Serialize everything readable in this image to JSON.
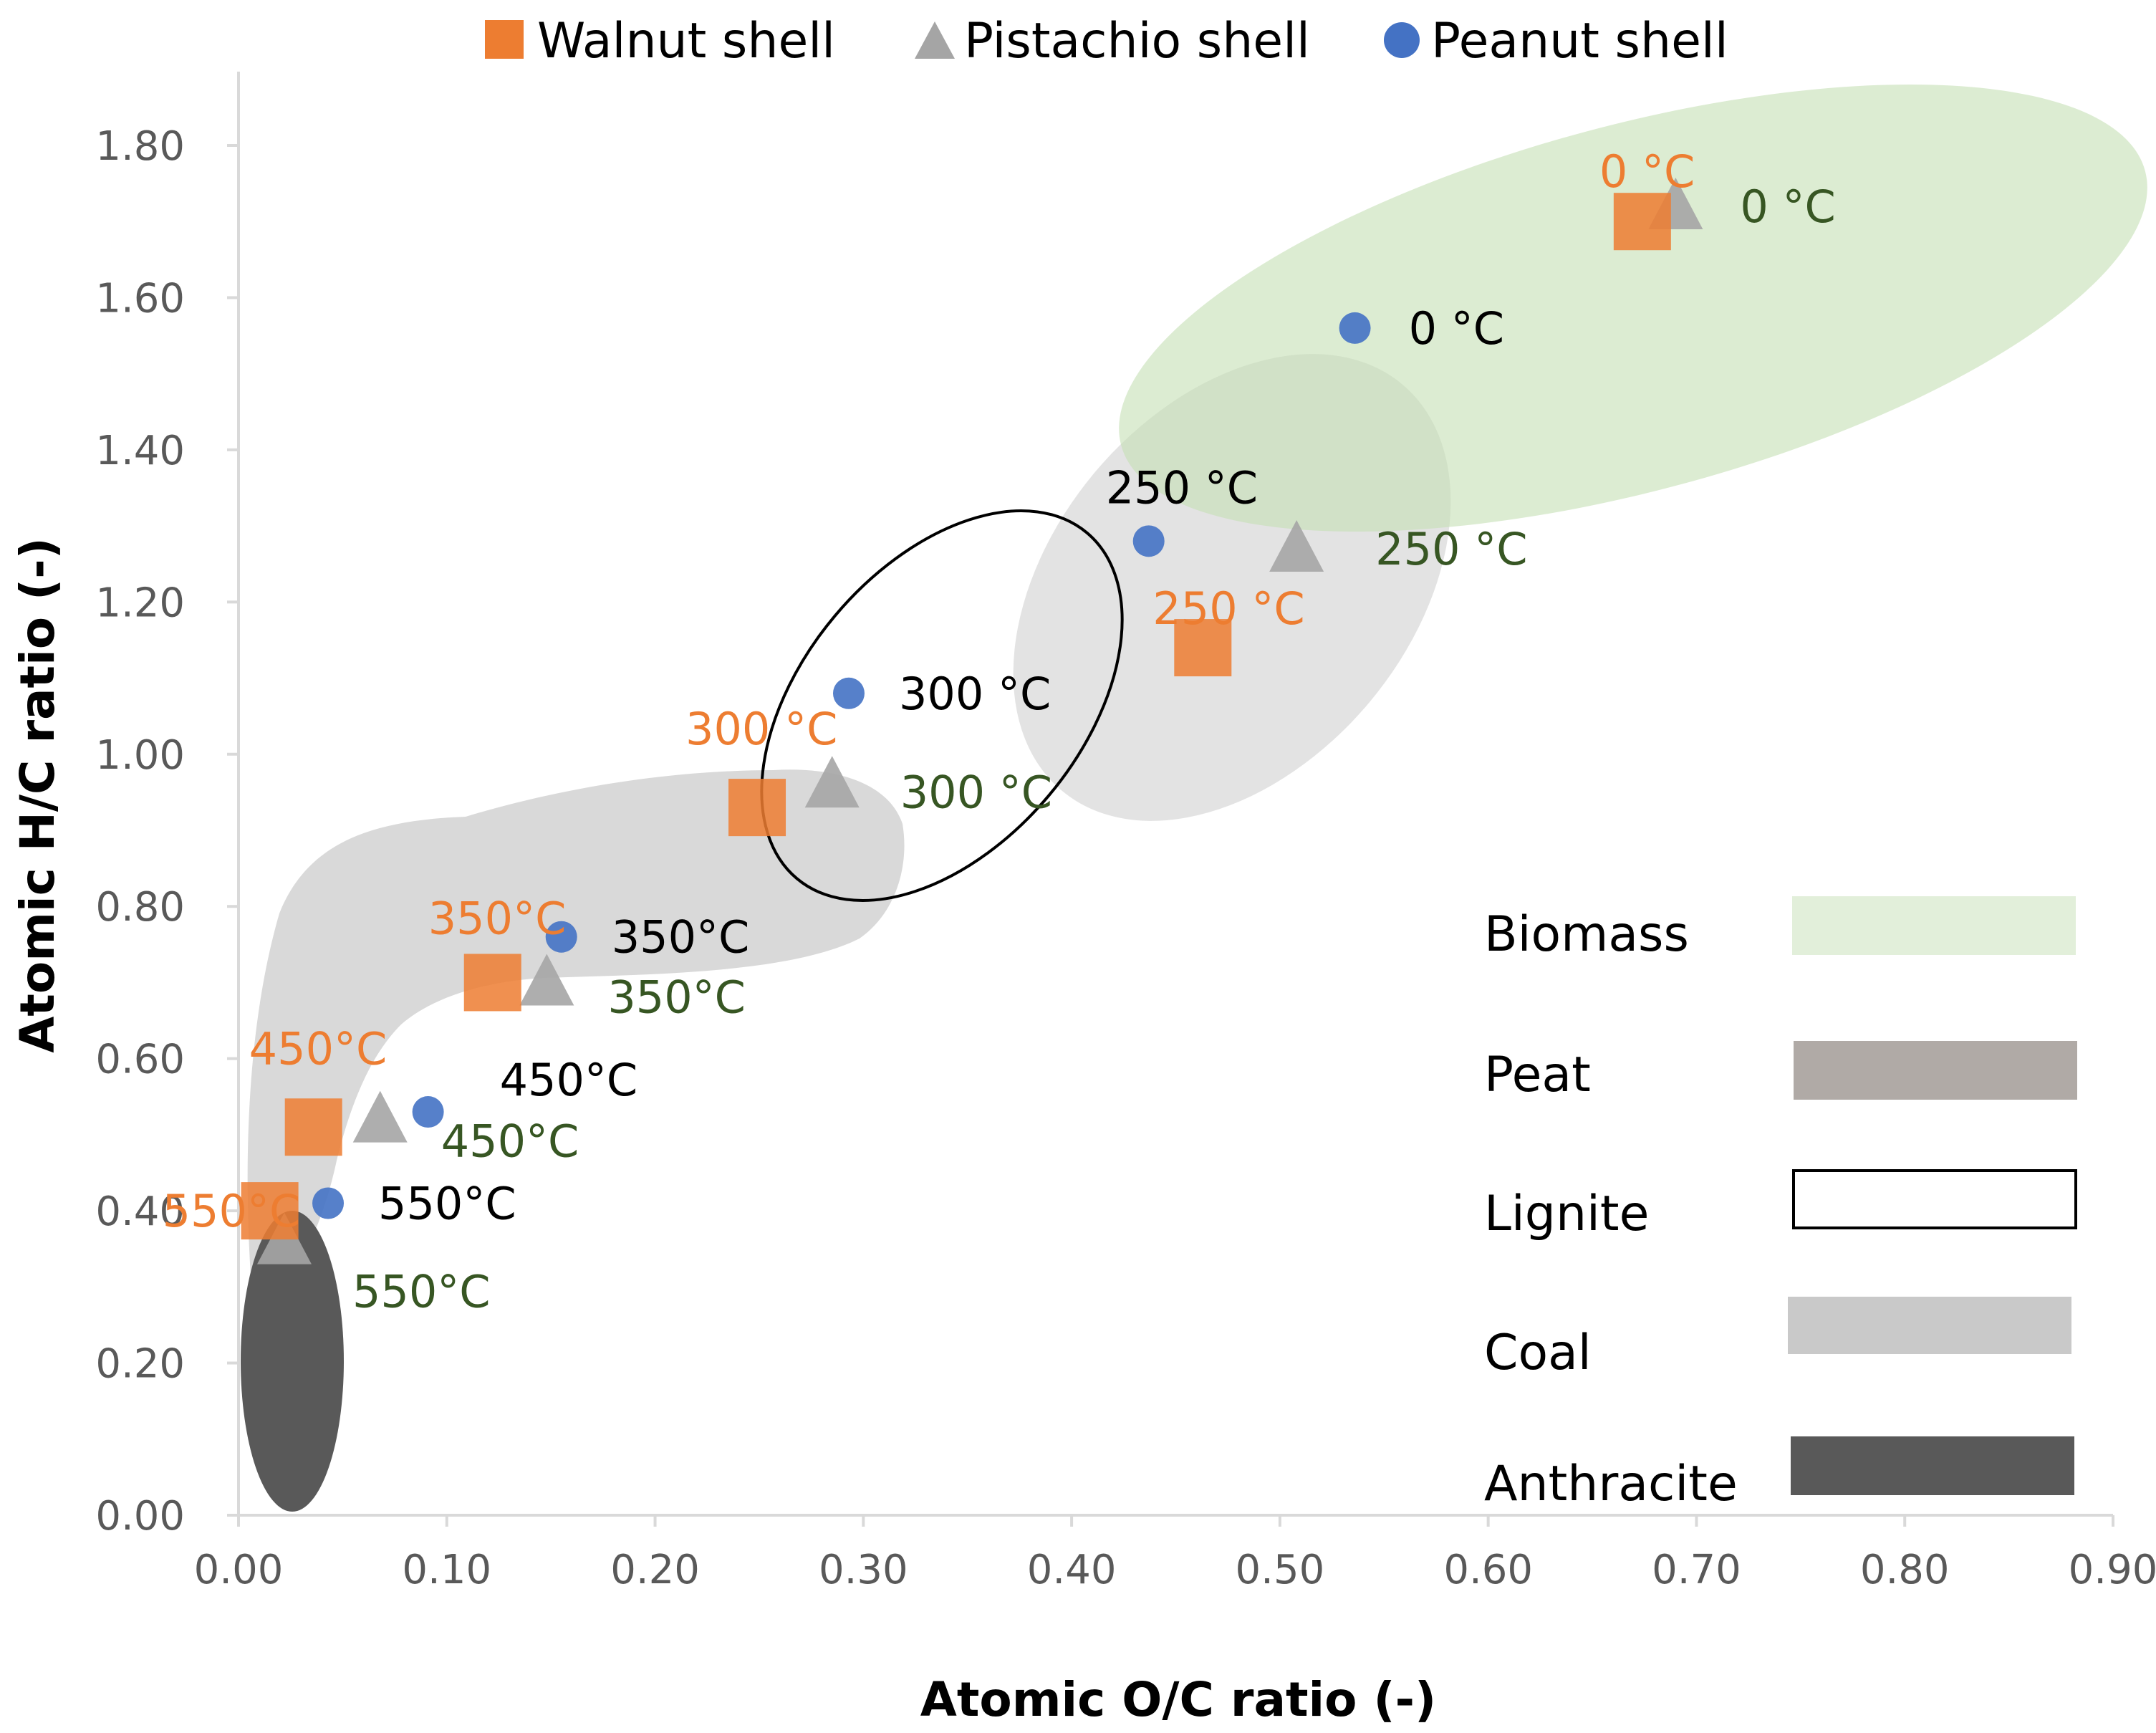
{
  "chart_data": {
    "type": "scatter",
    "title": "",
    "xlabel": "Atomic O/C ratio (-)",
    "ylabel": "Atomic H/C ratio (-)",
    "xlim": [
      0,
      0.9
    ],
    "ylim": [
      0,
      1.9
    ],
    "x_ticks": [
      "0.00",
      "0.10",
      "0.20",
      "0.30",
      "0.40",
      "0.50",
      "0.60",
      "0.70",
      "0.80",
      "0.90"
    ],
    "y_ticks": [
      "0.00",
      "0.20",
      "0.40",
      "0.60",
      "0.80",
      "1.00",
      "1.20",
      "1.40",
      "1.60",
      "1.80"
    ],
    "grid": false,
    "legend_position": "top",
    "colors": {
      "walnut": "#ED7D31",
      "pistachio": "#A5A5A5",
      "peanut": "#4472C4",
      "biomass": "#E2EFDA",
      "peat": "#B0AAA6",
      "coal": "#C9C9C9",
      "anthracite": "#595959",
      "walnut_label": "#ED7D31",
      "pistachio_label": "#375623",
      "peanut_label": "#000000"
    },
    "series": [
      {
        "name": "Walnut shell",
        "marker": "square",
        "points": [
          {
            "x": 0.674,
            "y": 1.7,
            "label": "0 °C"
          },
          {
            "x": 0.463,
            "y": 1.14,
            "label": "250 °C"
          },
          {
            "x": 0.249,
            "y": 0.93,
            "label": "300 °C"
          },
          {
            "x": 0.122,
            "y": 0.7,
            "label": "350°C"
          },
          {
            "x": 0.036,
            "y": 0.51,
            "label": "450°C"
          },
          {
            "x": 0.015,
            "y": 0.4,
            "label": "550°C"
          }
        ]
      },
      {
        "name": "Pistachio shell",
        "marker": "triangle",
        "points": [
          {
            "x": 0.69,
            "y": 1.72,
            "label": "0 °C"
          },
          {
            "x": 0.508,
            "y": 1.27,
            "label": "250 °C"
          },
          {
            "x": 0.285,
            "y": 0.96,
            "label": "300 °C"
          },
          {
            "x": 0.148,
            "y": 0.7,
            "label": "350°C"
          },
          {
            "x": 0.068,
            "y": 0.52,
            "label": "450°C"
          },
          {
            "x": 0.022,
            "y": 0.36,
            "label": "550°C"
          }
        ]
      },
      {
        "name": "Peanut shell",
        "marker": "circle",
        "points": [
          {
            "x": 0.536,
            "y": 1.56,
            "label": "0 °C"
          },
          {
            "x": 0.437,
            "y": 1.28,
            "label": "250 °C"
          },
          {
            "x": 0.293,
            "y": 1.08,
            "label": "300 °C"
          },
          {
            "x": 0.155,
            "y": 0.76,
            "label": "350°C"
          },
          {
            "x": 0.091,
            "y": 0.53,
            "label": "450°C"
          },
          {
            "x": 0.043,
            "y": 0.41,
            "label": "550°C"
          }
        ]
      }
    ],
    "regions": [
      {
        "name": "Biomass",
        "style": "filled"
      },
      {
        "name": "Peat",
        "style": "filled"
      },
      {
        "name": "Lignite",
        "style": "outline"
      },
      {
        "name": "Coal",
        "style": "filled"
      },
      {
        "name": "Anthracite",
        "style": "filled"
      }
    ]
  }
}
